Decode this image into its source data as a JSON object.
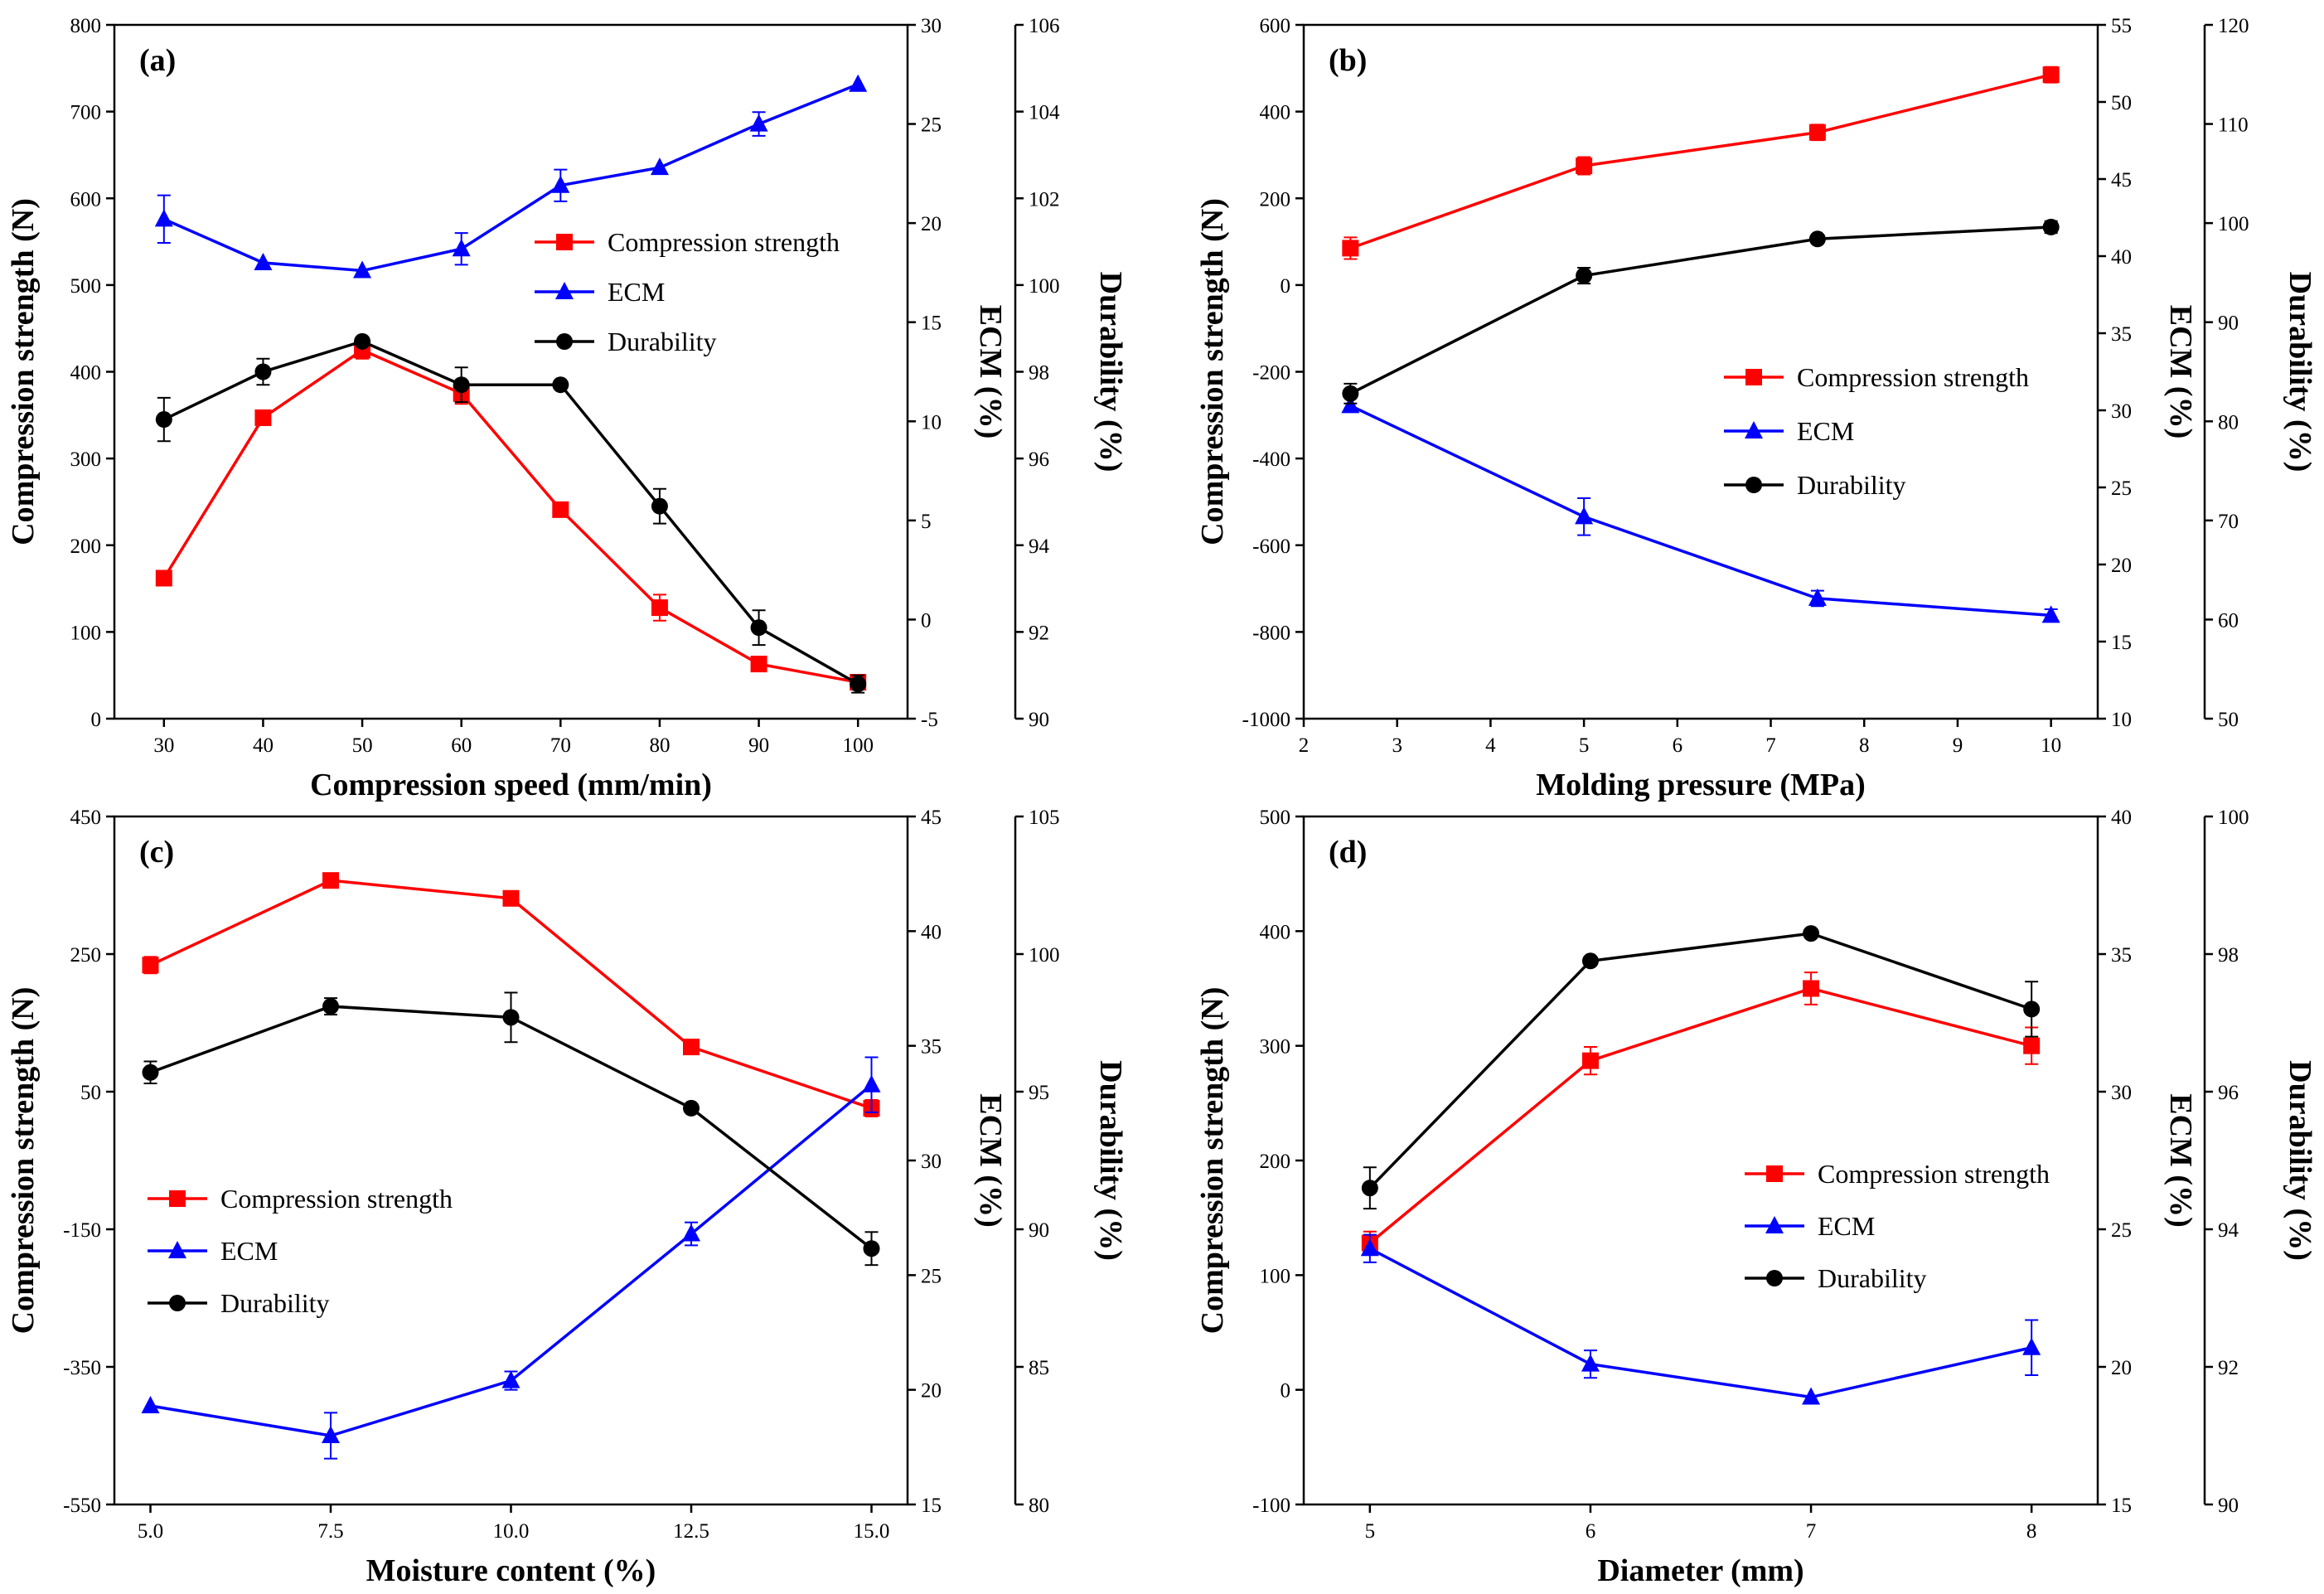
{
  "figure": {
    "series_names": [
      "Compression strength",
      "ECM",
      "Durability"
    ],
    "colors": {
      "strength": "#ff0000",
      "ecm": "#0000ff",
      "durability": "#000000"
    }
  },
  "chart_data": [
    {
      "type": "line",
      "panel": "(a)",
      "xlabel": "Compression speed (mm/min)",
      "x": [
        30,
        40,
        50,
        60,
        70,
        80,
        90,
        100
      ],
      "xlim": [
        25,
        105
      ],
      "xticks": [
        30,
        40,
        50,
        60,
        70,
        80,
        90,
        100
      ],
      "xtick_labels": [
        "30",
        "40",
        "50",
        "60",
        "70",
        "80",
        "90",
        "100"
      ],
      "legend_position": "top-right",
      "axes": {
        "strength": {
          "label": "Compression strength (N)",
          "lim": [
            0,
            800
          ],
          "ticks": [
            0,
            100,
            200,
            300,
            400,
            500,
            600,
            700,
            800
          ],
          "tick_labels": [
            "0",
            "100",
            "200",
            "300",
            "400",
            "500",
            "600",
            "700",
            "800"
          ]
        },
        "ecm": {
          "label": "ECM (%)",
          "lim": [
            -5,
            30
          ],
          "ticks": [
            -5,
            0,
            5,
            10,
            15,
            20,
            25,
            30
          ],
          "tick_labels": [
            "-5",
            "0",
            "5",
            "10",
            "15",
            "20",
            "25",
            "30"
          ]
        },
        "durability": {
          "label": "Durability (%)",
          "lim": [
            90,
            106
          ],
          "ticks": [
            90,
            92,
            94,
            96,
            98,
            100,
            102,
            104,
            106
          ],
          "tick_labels": [
            "90",
            "92",
            "94",
            "96",
            "98",
            "100",
            "102",
            "104",
            "106"
          ]
        }
      },
      "series": [
        {
          "name": "Compression strength",
          "axis": "strength",
          "marker": "square",
          "values": [
            162,
            347,
            425,
            375,
            241,
            128,
            63,
            42
          ],
          "errors": [
            0,
            0,
            10,
            12,
            0,
            15,
            0,
            0
          ]
        },
        {
          "name": "ECM",
          "axis": "ecm",
          "marker": "triangle",
          "values": [
            20.2,
            18.0,
            17.6,
            18.7,
            21.9,
            22.8,
            25.0,
            27.0
          ],
          "errors": [
            1.2,
            0,
            0,
            0.8,
            0.8,
            0,
            0.6,
            0
          ]
        },
        {
          "name": "Durability",
          "axis": "durability",
          "marker": "circle",
          "values": [
            96.9,
            98.0,
            98.7,
            97.7,
            97.7,
            94.9,
            92.1,
            90.8
          ],
          "errors": [
            0.5,
            0.3,
            0,
            0.4,
            0,
            0.4,
            0.4,
            0.2
          ]
        }
      ]
    },
    {
      "type": "line",
      "panel": "(b)",
      "xlabel": "Molding pressure (MPa)",
      "x": [
        2.5,
        5,
        7.5,
        10
      ],
      "xlim": [
        2,
        10.5
      ],
      "xticks": [
        2,
        3,
        4,
        5,
        6,
        7,
        8,
        9,
        10
      ],
      "xtick_labels": [
        "2",
        "3",
        "4",
        "5",
        "6",
        "7",
        "8",
        "9",
        "10"
      ],
      "legend_position": "center-right",
      "axes": {
        "strength": {
          "label": "Compression strength (N)",
          "lim": [
            -1000,
            600
          ],
          "ticks": [
            -1000,
            -800,
            -600,
            -400,
            -200,
            0,
            200,
            400,
            600
          ],
          "tick_labels": [
            "-1000",
            "-800",
            "-600",
            "-400",
            "-200",
            "0",
            "200",
            "400",
            "600"
          ]
        },
        "ecm": {
          "label": "ECM (%)",
          "lim": [
            10,
            55
          ],
          "ticks": [
            10,
            15,
            20,
            25,
            30,
            35,
            40,
            45,
            50,
            55
          ],
          "tick_labels": [
            "10",
            "15",
            "20",
            "25",
            "30",
            "35",
            "40",
            "45",
            "50",
            "55"
          ]
        },
        "durability": {
          "label": "Durability (%)",
          "lim": [
            50,
            120
          ],
          "ticks": [
            50,
            60,
            70,
            80,
            90,
            100,
            110,
            120
          ],
          "tick_labels": [
            "50",
            "60",
            "70",
            "80",
            "90",
            "100",
            "110",
            "120"
          ]
        }
      },
      "series": [
        {
          "name": "Compression strength",
          "axis": "strength",
          "marker": "square",
          "values": [
            85,
            275,
            352,
            485
          ],
          "errors": [
            25,
            20,
            18,
            18
          ]
        },
        {
          "name": "ECM",
          "axis": "ecm",
          "marker": "triangle",
          "values": [
            30.3,
            23.1,
            17.8,
            16.7
          ],
          "errors": [
            0,
            1.2,
            0.5,
            0.4
          ]
        },
        {
          "name": "Durability",
          "axis": "durability",
          "marker": "circle",
          "values": [
            82.8,
            94.7,
            98.4,
            99.6
          ],
          "errors": [
            1.0,
            0.8,
            0,
            0.6
          ]
        }
      ]
    },
    {
      "type": "line",
      "panel": "(c)",
      "xlabel": "Moisture content (%)",
      "x": [
        5,
        7.5,
        10,
        12.5,
        15
      ],
      "xlim": [
        4.5,
        15.5
      ],
      "xticks": [
        5,
        7.5,
        10,
        12.5,
        15
      ],
      "xtick_labels": [
        "5.0",
        "7.5",
        "10.0",
        "12.5",
        "15.0"
      ],
      "legend_position": "center-left",
      "axes": {
        "strength": {
          "label": "Compression strength (N)",
          "lim": [
            -550,
            450
          ],
          "ticks": [
            -550,
            -350,
            -150,
            50,
            250,
            450
          ],
          "tick_labels": [
            "-550",
            "-350",
            "-150",
            "50",
            "250",
            "450"
          ]
        },
        "ecm": {
          "label": "ECM (%)",
          "lim": [
            15,
            45
          ],
          "ticks": [
            15,
            20,
            25,
            30,
            35,
            40,
            45
          ],
          "tick_labels": [
            "15",
            "20",
            "25",
            "30",
            "35",
            "40",
            "45"
          ]
        },
        "durability": {
          "label": "Durability (%)",
          "lim": [
            80,
            105
          ],
          "ticks": [
            80,
            85,
            90,
            95,
            100,
            105
          ],
          "tick_labels": [
            "80",
            "85",
            "90",
            "95",
            "100",
            "105"
          ]
        }
      },
      "series": [
        {
          "name": "Compression strength",
          "axis": "strength",
          "marker": "square",
          "values": [
            234,
            357,
            331,
            115,
            26
          ],
          "errors": [
            12,
            10,
            10,
            10,
            12
          ]
        },
        {
          "name": "ECM",
          "axis": "ecm",
          "marker": "triangle",
          "values": [
            19.3,
            18.0,
            20.4,
            26.8,
            33.3
          ],
          "errors": [
            0,
            1.0,
            0.4,
            0.5,
            1.2
          ]
        },
        {
          "name": "Durability",
          "axis": "durability",
          "marker": "circle",
          "values": [
            95.7,
            98.1,
            97.7,
            94.4,
            89.3
          ],
          "errors": [
            0.4,
            0.3,
            0.9,
            0,
            0.6
          ]
        }
      ]
    },
    {
      "type": "line",
      "panel": "(d)",
      "xlabel": "Diameter (mm)",
      "x": [
        5,
        6,
        7,
        8
      ],
      "xlim": [
        4.7,
        8.3
      ],
      "xticks": [
        5,
        6,
        7,
        8
      ],
      "xtick_labels": [
        "5",
        "6",
        "7",
        "8"
      ],
      "legend_position": "center-right",
      "axes": {
        "strength": {
          "label": "Compression strength (N)",
          "lim": [
            -100,
            500
          ],
          "ticks": [
            -100,
            0,
            100,
            200,
            300,
            400,
            500
          ],
          "tick_labels": [
            "-100",
            "0",
            "100",
            "200",
            "300",
            "400",
            "500"
          ]
        },
        "ecm": {
          "label": "ECM (%)",
          "lim": [
            15,
            40
          ],
          "ticks": [
            15,
            20,
            25,
            30,
            35,
            40
          ],
          "tick_labels": [
            "15",
            "20",
            "25",
            "30",
            "35",
            "40"
          ]
        },
        "durability": {
          "label": "Durability (%)",
          "lim": [
            90,
            100
          ],
          "ticks": [
            90,
            92,
            94,
            96,
            98,
            100
          ],
          "tick_labels": [
            "90",
            "92",
            "94",
            "96",
            "98",
            "100"
          ]
        }
      },
      "series": [
        {
          "name": "Compression strength",
          "axis": "strength",
          "marker": "square",
          "values": [
            128,
            287,
            350,
            300
          ],
          "errors": [
            10,
            12,
            14,
            16
          ]
        },
        {
          "name": "ECM",
          "axis": "ecm",
          "marker": "triangle",
          "values": [
            24.3,
            20.1,
            18.9,
            20.7
          ],
          "errors": [
            0.5,
            0.5,
            0,
            1.0
          ]
        },
        {
          "name": "Durability",
          "axis": "durability",
          "marker": "circle",
          "values": [
            94.6,
            97.9,
            98.3,
            97.2
          ],
          "errors": [
            0.3,
            0,
            0,
            0.4
          ]
        }
      ]
    }
  ]
}
